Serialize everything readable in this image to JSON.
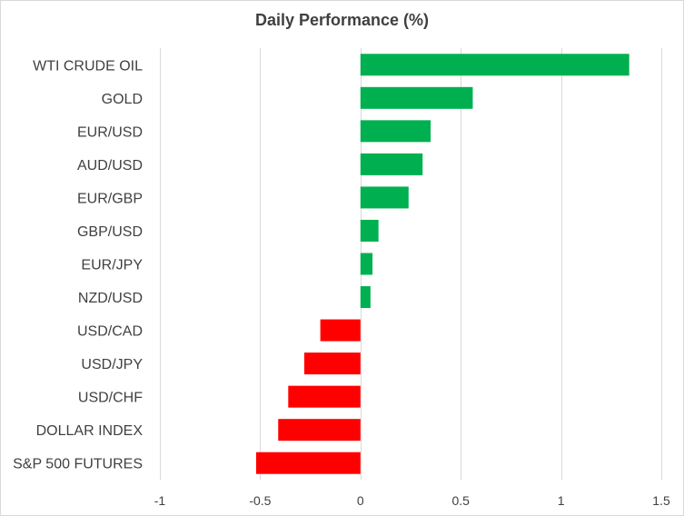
{
  "chart_data": {
    "type": "bar",
    "orientation": "horizontal",
    "title": "Daily Performance (%)",
    "categories": [
      "WTI CRUDE OIL",
      "GOLD",
      "EUR/USD",
      "AUD/USD",
      "EUR/GBP",
      "GBP/USD",
      "EUR/JPY",
      "NZD/USD",
      "USD/CAD",
      "USD/JPY",
      "USD/CHF",
      "DOLLAR INDEX",
      "S&P 500 FUTURES"
    ],
    "values": [
      1.34,
      0.56,
      0.35,
      0.31,
      0.24,
      0.09,
      0.06,
      0.05,
      -0.2,
      -0.28,
      -0.36,
      -0.41,
      -0.52
    ],
    "xlim": [
      -1,
      1.5
    ],
    "xticks": [
      -1,
      -0.5,
      0,
      0.5,
      1,
      1.5
    ],
    "xtick_labels": [
      "-1",
      "-0.5",
      "0",
      "0.5",
      "1",
      "1.5"
    ],
    "grid": "vertical",
    "legend": "none",
    "colors": {
      "positive": "#00b050",
      "negative": "#ff0000",
      "grid": "#d9d9d9",
      "text": "#404040"
    }
  }
}
